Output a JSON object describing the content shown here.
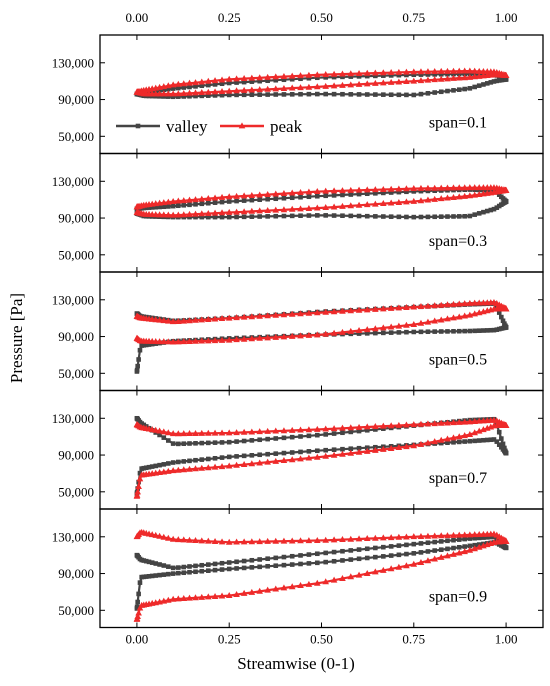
{
  "chart_data": {
    "type": "line",
    "xlabel": "Streamwise (0-1)",
    "ylabel": "Pressure [Pa]",
    "xlim": [
      -0.1,
      1.1
    ],
    "ylim": [
      40000,
      145000
    ],
    "x_ticks": [
      0,
      0.25,
      0.5,
      0.75,
      1
    ],
    "x_tick_labels": [
      "0.00",
      "0.25",
      "0.50",
      "0.75",
      "1.00"
    ],
    "y_ticks": [
      50000,
      90000,
      130000
    ],
    "y_tick_labels": [
      "50,000",
      "90,000",
      "130,000"
    ],
    "legend": {
      "placement": "inside-left of first panel",
      "entries": [
        {
          "label": "valley",
          "color": "#444444",
          "marker": "square"
        },
        {
          "label": "peak",
          "color": "#ee2a2a",
          "marker": "triangle"
        }
      ]
    },
    "panels": [
      {
        "label": "span=0.1",
        "series": [
          {
            "name": "valley",
            "x": [
              0,
              0.02,
              0.1,
              0.25,
              0.5,
              0.75,
              0.9,
              0.97,
              1
            ],
            "upper": [
              96000,
              98000,
              102000,
              108000,
              114000,
              117000,
              118000,
              117000,
              112000
            ],
            "lower": [
              96000,
              94000,
              93000,
              95000,
              96000,
              95000,
              102000,
              110000,
              112000
            ]
          },
          {
            "name": "peak",
            "x": [
              0,
              0.02,
              0.1,
              0.25,
              0.5,
              0.75,
              0.9,
              0.97,
              1
            ],
            "upper": [
              98000,
              100000,
              106000,
              112000,
              117000,
              120000,
              121000,
              120000,
              116000
            ],
            "lower": [
              98000,
              96000,
              96000,
              99000,
              104000,
              110000,
              114000,
              117000,
              116000
            ]
          }
        ]
      },
      {
        "label": "span=0.3",
        "series": [
          {
            "name": "valley",
            "x": [
              0,
              0.02,
              0.1,
              0.25,
              0.5,
              0.75,
              0.9,
              0.97,
              1
            ],
            "upper": [
              100000,
              101000,
              103000,
              108000,
              114000,
              119000,
              121000,
              120000,
              108000
            ],
            "lower": [
              95000,
              92000,
              91000,
              91000,
              93000,
              91000,
              92000,
              100000,
              108000
            ]
          },
          {
            "name": "peak",
            "x": [
              0,
              0.02,
              0.1,
              0.25,
              0.5,
              0.75,
              0.9,
              0.97,
              1
            ],
            "upper": [
              102000,
              104000,
              108000,
              113000,
              119000,
              122000,
              123000,
              123000,
              120000
            ],
            "lower": [
              96000,
              94000,
              93000,
              96000,
              101000,
              108000,
              114000,
              118000,
              120000
            ]
          }
        ]
      },
      {
        "label": "span=0.5",
        "series": [
          {
            "name": "valley",
            "x": [
              0,
              0.01,
              0.1,
              0.25,
              0.5,
              0.75,
              0.9,
              0.97,
              1
            ],
            "upper": [
              115000,
              112000,
              107000,
              110000,
              117000,
              122000,
              125000,
              126000,
              100000
            ],
            "lower": [
              52000,
              80000,
              85000,
              88000,
              92000,
              95000,
              96000,
              97000,
              100000
            ]
          },
          {
            "name": "peak",
            "x": [
              0,
              0.01,
              0.1,
              0.25,
              0.5,
              0.75,
              0.9,
              0.97,
              1
            ],
            "upper": [
              112000,
              110000,
              106000,
              110000,
              116000,
              122000,
              126000,
              127000,
              120000
            ],
            "lower": [
              88000,
              85000,
              84000,
              86000,
              92000,
              103000,
              113000,
              120000,
              120000
            ]
          }
        ]
      },
      {
        "label": "span=0.7",
        "series": [
          {
            "name": "valley",
            "x": [
              0,
              0.01,
              0.1,
              0.25,
              0.5,
              0.75,
              0.9,
              0.97,
              1
            ],
            "upper": [
              130000,
              125000,
              102000,
              104000,
              112000,
              122000,
              128000,
              129000,
              92000
            ],
            "lower": [
              48000,
              75000,
              82000,
              88000,
              95000,
              101000,
              105000,
              107000,
              92000
            ]
          },
          {
            "name": "peak",
            "x": [
              0,
              0.01,
              0.1,
              0.25,
              0.5,
              0.75,
              0.9,
              0.97,
              1
            ],
            "upper": [
              123000,
              120000,
              113000,
              114000,
              118000,
              123000,
              126000,
              128000,
              122000
            ],
            "lower": [
              45000,
              68000,
              73000,
              78000,
              88000,
              100000,
              112000,
              122000,
              122000
            ]
          }
        ]
      },
      {
        "label": "span=0.9",
        "series": [
          {
            "name": "valley",
            "x": [
              0,
              0.01,
              0.1,
              0.25,
              0.5,
              0.75,
              0.9,
              0.97,
              1
            ],
            "upper": [
              110000,
              105000,
              96000,
              102000,
              112000,
              122000,
              128000,
              130000,
              118000
            ],
            "lower": [
              52000,
              86000,
              90000,
              95000,
              102000,
              112000,
              120000,
              124000,
              118000
            ]
          },
          {
            "name": "peak",
            "x": [
              0,
              0.01,
              0.1,
              0.25,
              0.5,
              0.75,
              0.9,
              0.97,
              1
            ],
            "upper": [
              130000,
              135000,
              127000,
              124000,
              126000,
              130000,
              132000,
              133000,
              125000
            ],
            "lower": [
              40000,
              55000,
              62000,
              66000,
              80000,
              100000,
              115000,
              124000,
              125000
            ]
          }
        ]
      }
    ]
  }
}
